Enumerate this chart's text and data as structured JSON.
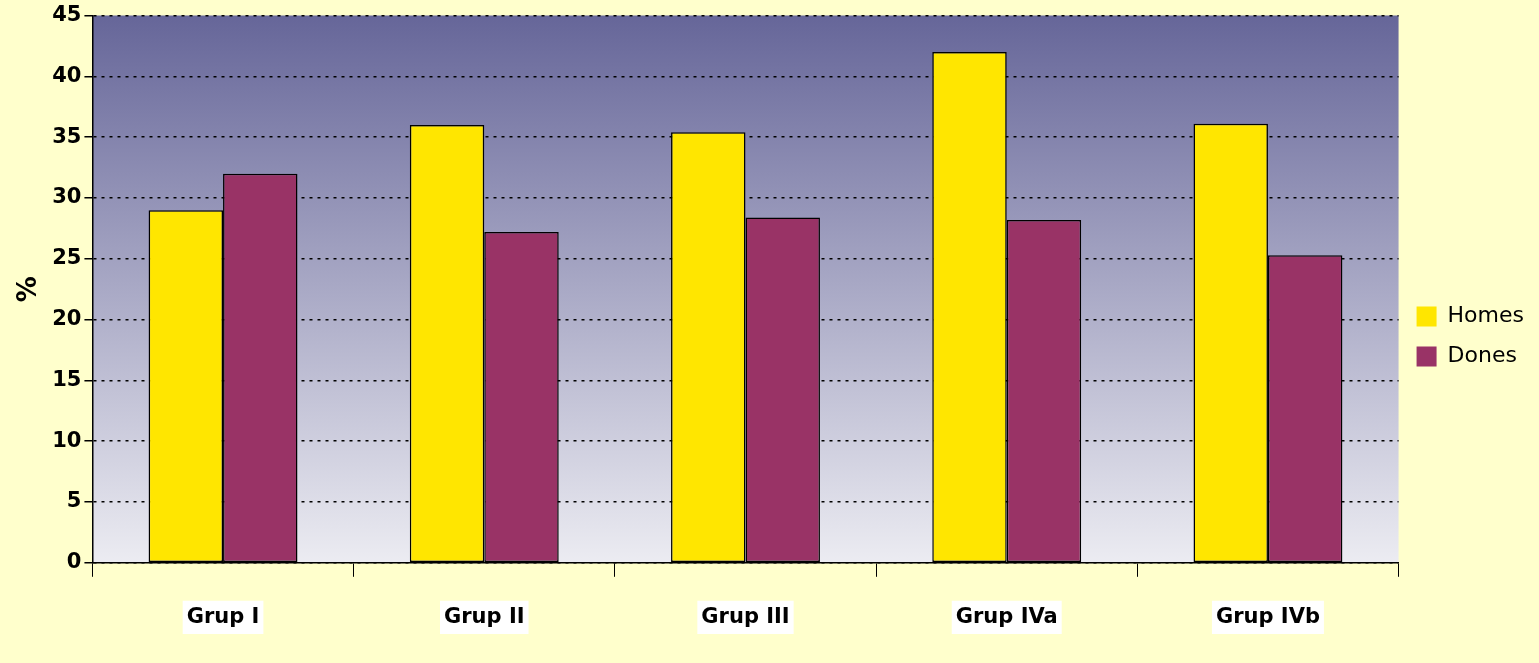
{
  "chart_data": {
    "type": "bar",
    "ylabel": "%",
    "categories": [
      "Grup I",
      "Grup II",
      "Grup III",
      "Grup IVa",
      "Grup IVb"
    ],
    "series": [
      {
        "name": "Homes",
        "color": "#ffe600",
        "values": [
          29,
          36,
          35.4,
          42,
          36.1
        ]
      },
      {
        "name": "Dones",
        "color": "#993366",
        "values": [
          32,
          27.2,
          28.4,
          28.2,
          25.3
        ]
      }
    ],
    "ylim": [
      0,
      45
    ],
    "yticks": [
      0,
      5,
      10,
      15,
      20,
      25,
      30,
      35,
      40,
      45
    ],
    "grid": "y",
    "legend": "right"
  }
}
